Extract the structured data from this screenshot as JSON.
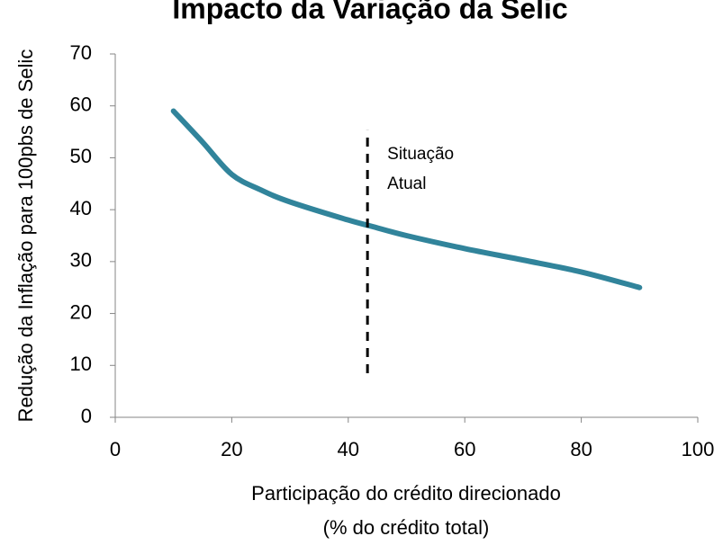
{
  "chart_data": {
    "type": "line",
    "title": "Impacto da Variação da Selic",
    "y_label": "Redução da Inflação para 100pbs de Selic",
    "x_label": [
      "Participação do crédito direcionado",
      "(% do crédito total)"
    ],
    "x": [
      10,
      15,
      20,
      25,
      30,
      40,
      44,
      50,
      60,
      70,
      80,
      90
    ],
    "series": [
      {
        "name": "Redução da Inflação",
        "color": "#31849b",
        "values": [
          59,
          53,
          46.8,
          43.8,
          41.5,
          38,
          36.8,
          35,
          32.5,
          30.3,
          28,
          25
        ]
      }
    ],
    "xlim": [
      0,
      100
    ],
    "xticks": [
      0,
      20,
      40,
      60,
      80,
      100
    ],
    "ylim": [
      0,
      70
    ],
    "yticks": [
      0,
      10,
      20,
      30,
      40,
      50,
      60,
      70
    ],
    "annotation": {
      "text_lines": [
        "Situação",
        "Atual"
      ],
      "x": 43.3,
      "y": [
        8.5,
        55.3
      ]
    }
  }
}
